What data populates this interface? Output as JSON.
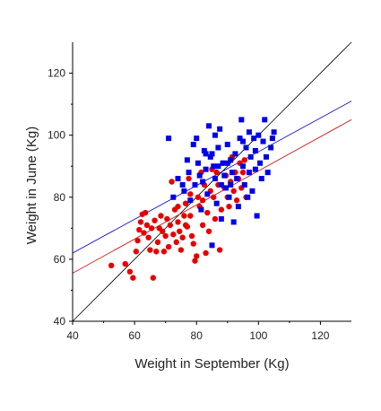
{
  "chart_data": {
    "type": "scatter",
    "title": "",
    "xlabel": "Weight in September (Kg)",
    "ylabel": "Weight in June (Kg)",
    "xlim": [
      40,
      130
    ],
    "ylim": [
      40,
      130
    ],
    "xticks": [
      40,
      60,
      80,
      100,
      120
    ],
    "yticks": [
      40,
      60,
      80,
      100,
      120
    ],
    "grid": false,
    "series": [
      {
        "marker": "circle",
        "color": "#e60000",
        "points": [
          [
            52.5,
            58
          ],
          [
            57,
            58.5
          ],
          [
            58.5,
            56
          ],
          [
            59.5,
            54
          ],
          [
            60.5,
            62.5
          ],
          [
            61,
            66
          ],
          [
            61.5,
            69.5
          ],
          [
            62,
            72
          ],
          [
            62.5,
            74.5
          ],
          [
            63,
            68.5
          ],
          [
            63.5,
            75
          ],
          [
            64,
            71
          ],
          [
            64.5,
            67
          ],
          [
            65,
            63
          ],
          [
            65.5,
            70
          ],
          [
            66,
            54
          ],
          [
            66.5,
            72.5
          ],
          [
            67,
            62.5
          ],
          [
            67.5,
            65.5
          ],
          [
            68,
            70
          ],
          [
            68.5,
            74
          ],
          [
            69,
            69
          ],
          [
            69.5,
            62.5
          ],
          [
            70,
            67.5
          ],
          [
            70.5,
            73
          ],
          [
            71,
            64
          ],
          [
            71.5,
            71
          ],
          [
            72,
            85
          ],
          [
            72.5,
            68
          ],
          [
            73,
            76
          ],
          [
            73.5,
            65.5
          ],
          [
            74,
            72
          ],
          [
            74.5,
            69
          ],
          [
            75,
            63
          ],
          [
            75.5,
            67
          ],
          [
            76,
            74
          ],
          [
            76.5,
            78
          ],
          [
            77,
            70.5
          ],
          [
            77.5,
            86
          ],
          [
            78,
            81
          ],
          [
            78.5,
            67.5
          ],
          [
            79,
            65
          ],
          [
            79.5,
            59.5
          ],
          [
            80,
            61
          ],
          [
            80.5,
            80
          ],
          [
            81,
            77
          ],
          [
            81.5,
            88
          ],
          [
            82,
            71
          ],
          [
            82.5,
            84
          ],
          [
            83,
            62
          ],
          [
            83.5,
            75
          ],
          [
            84,
            69
          ],
          [
            84.5,
            82
          ],
          [
            85,
            89
          ],
          [
            85.5,
            80
          ],
          [
            86,
            73
          ],
          [
            86.5,
            88
          ],
          [
            87,
            84
          ],
          [
            87.5,
            63
          ],
          [
            88,
            76
          ],
          [
            88.5,
            91
          ],
          [
            89,
            83
          ],
          [
            89.5,
            87
          ],
          [
            90,
            80
          ],
          [
            90.5,
            77
          ],
          [
            91,
            85
          ],
          [
            91.5,
            93
          ],
          [
            92,
            82
          ],
          [
            92.5,
            88
          ],
          [
            93,
            79
          ],
          [
            93.5,
            86
          ],
          [
            94,
            91
          ],
          [
            94.5,
            83
          ],
          [
            95,
            88
          ],
          [
            95.5,
            92
          ],
          [
            96,
            80
          ],
          [
            76.5,
            71
          ],
          [
            78,
            74
          ],
          [
            74,
            77
          ],
          [
            82,
            79
          ]
        ]
      },
      {
        "marker": "square",
        "color": "#0000e6",
        "points": [
          [
            71,
            99
          ],
          [
            72.5,
            80
          ],
          [
            74,
            86
          ],
          [
            75.5,
            84
          ],
          [
            76,
            82
          ],
          [
            77,
            92
          ],
          [
            77.5,
            88
          ],
          [
            78,
            79
          ],
          [
            79,
            97
          ],
          [
            79.5,
            84
          ],
          [
            80,
            99
          ],
          [
            80.5,
            91
          ],
          [
            81,
            87
          ],
          [
            81.5,
            76
          ],
          [
            82,
            85
          ],
          [
            82.5,
            95
          ],
          [
            83,
            89
          ],
          [
            83.5,
            81
          ],
          [
            84,
            103
          ],
          [
            84.5,
            93
          ],
          [
            85,
            64.5
          ],
          [
            85.5,
            90
          ],
          [
            86,
            86
          ],
          [
            86.5,
            78
          ],
          [
            87,
            96
          ],
          [
            87.5,
            102
          ],
          [
            88,
            73
          ],
          [
            88.5,
            91
          ],
          [
            89,
            87
          ],
          [
            89.5,
            83
          ],
          [
            90,
            97
          ],
          [
            90.5,
            80
          ],
          [
            91,
            92
          ],
          [
            91.5,
            88
          ],
          [
            92,
            72
          ],
          [
            92.5,
            94
          ],
          [
            93,
            86
          ],
          [
            93.5,
            77
          ],
          [
            94,
            99
          ],
          [
            94.5,
            105
          ],
          [
            95,
            90
          ],
          [
            95.5,
            84
          ],
          [
            96,
            96
          ],
          [
            96.5,
            80
          ],
          [
            97,
            88
          ],
          [
            97.5,
            93
          ],
          [
            98,
            82
          ],
          [
            98.5,
            99
          ],
          [
            99,
            95
          ],
          [
            99.5,
            74
          ],
          [
            100,
            100
          ],
          [
            100.5,
            91
          ],
          [
            101,
            86
          ],
          [
            101.5,
            98
          ],
          [
            102,
            105
          ],
          [
            102.5,
            93
          ],
          [
            103,
            88
          ],
          [
            104,
            96
          ],
          [
            104.5,
            99
          ],
          [
            105,
            101
          ],
          [
            83,
            94
          ],
          [
            86,
            100
          ],
          [
            88,
            84
          ],
          [
            91,
            84
          ],
          [
            95,
            98
          ],
          [
            97,
            101
          ],
          [
            99,
            89
          ],
          [
            87,
            90
          ],
          [
            85,
            94
          ],
          [
            90,
            91
          ]
        ]
      }
    ],
    "lines": [
      {
        "color": "#000000",
        "from": [
          40,
          40
        ],
        "to": [
          130,
          130
        ]
      },
      {
        "color": "#0000cc",
        "from": [
          40,
          62
        ],
        "to": [
          130,
          111
        ]
      },
      {
        "color": "#cc0000",
        "from": [
          40,
          55.5
        ],
        "to": [
          130,
          105
        ]
      }
    ]
  }
}
